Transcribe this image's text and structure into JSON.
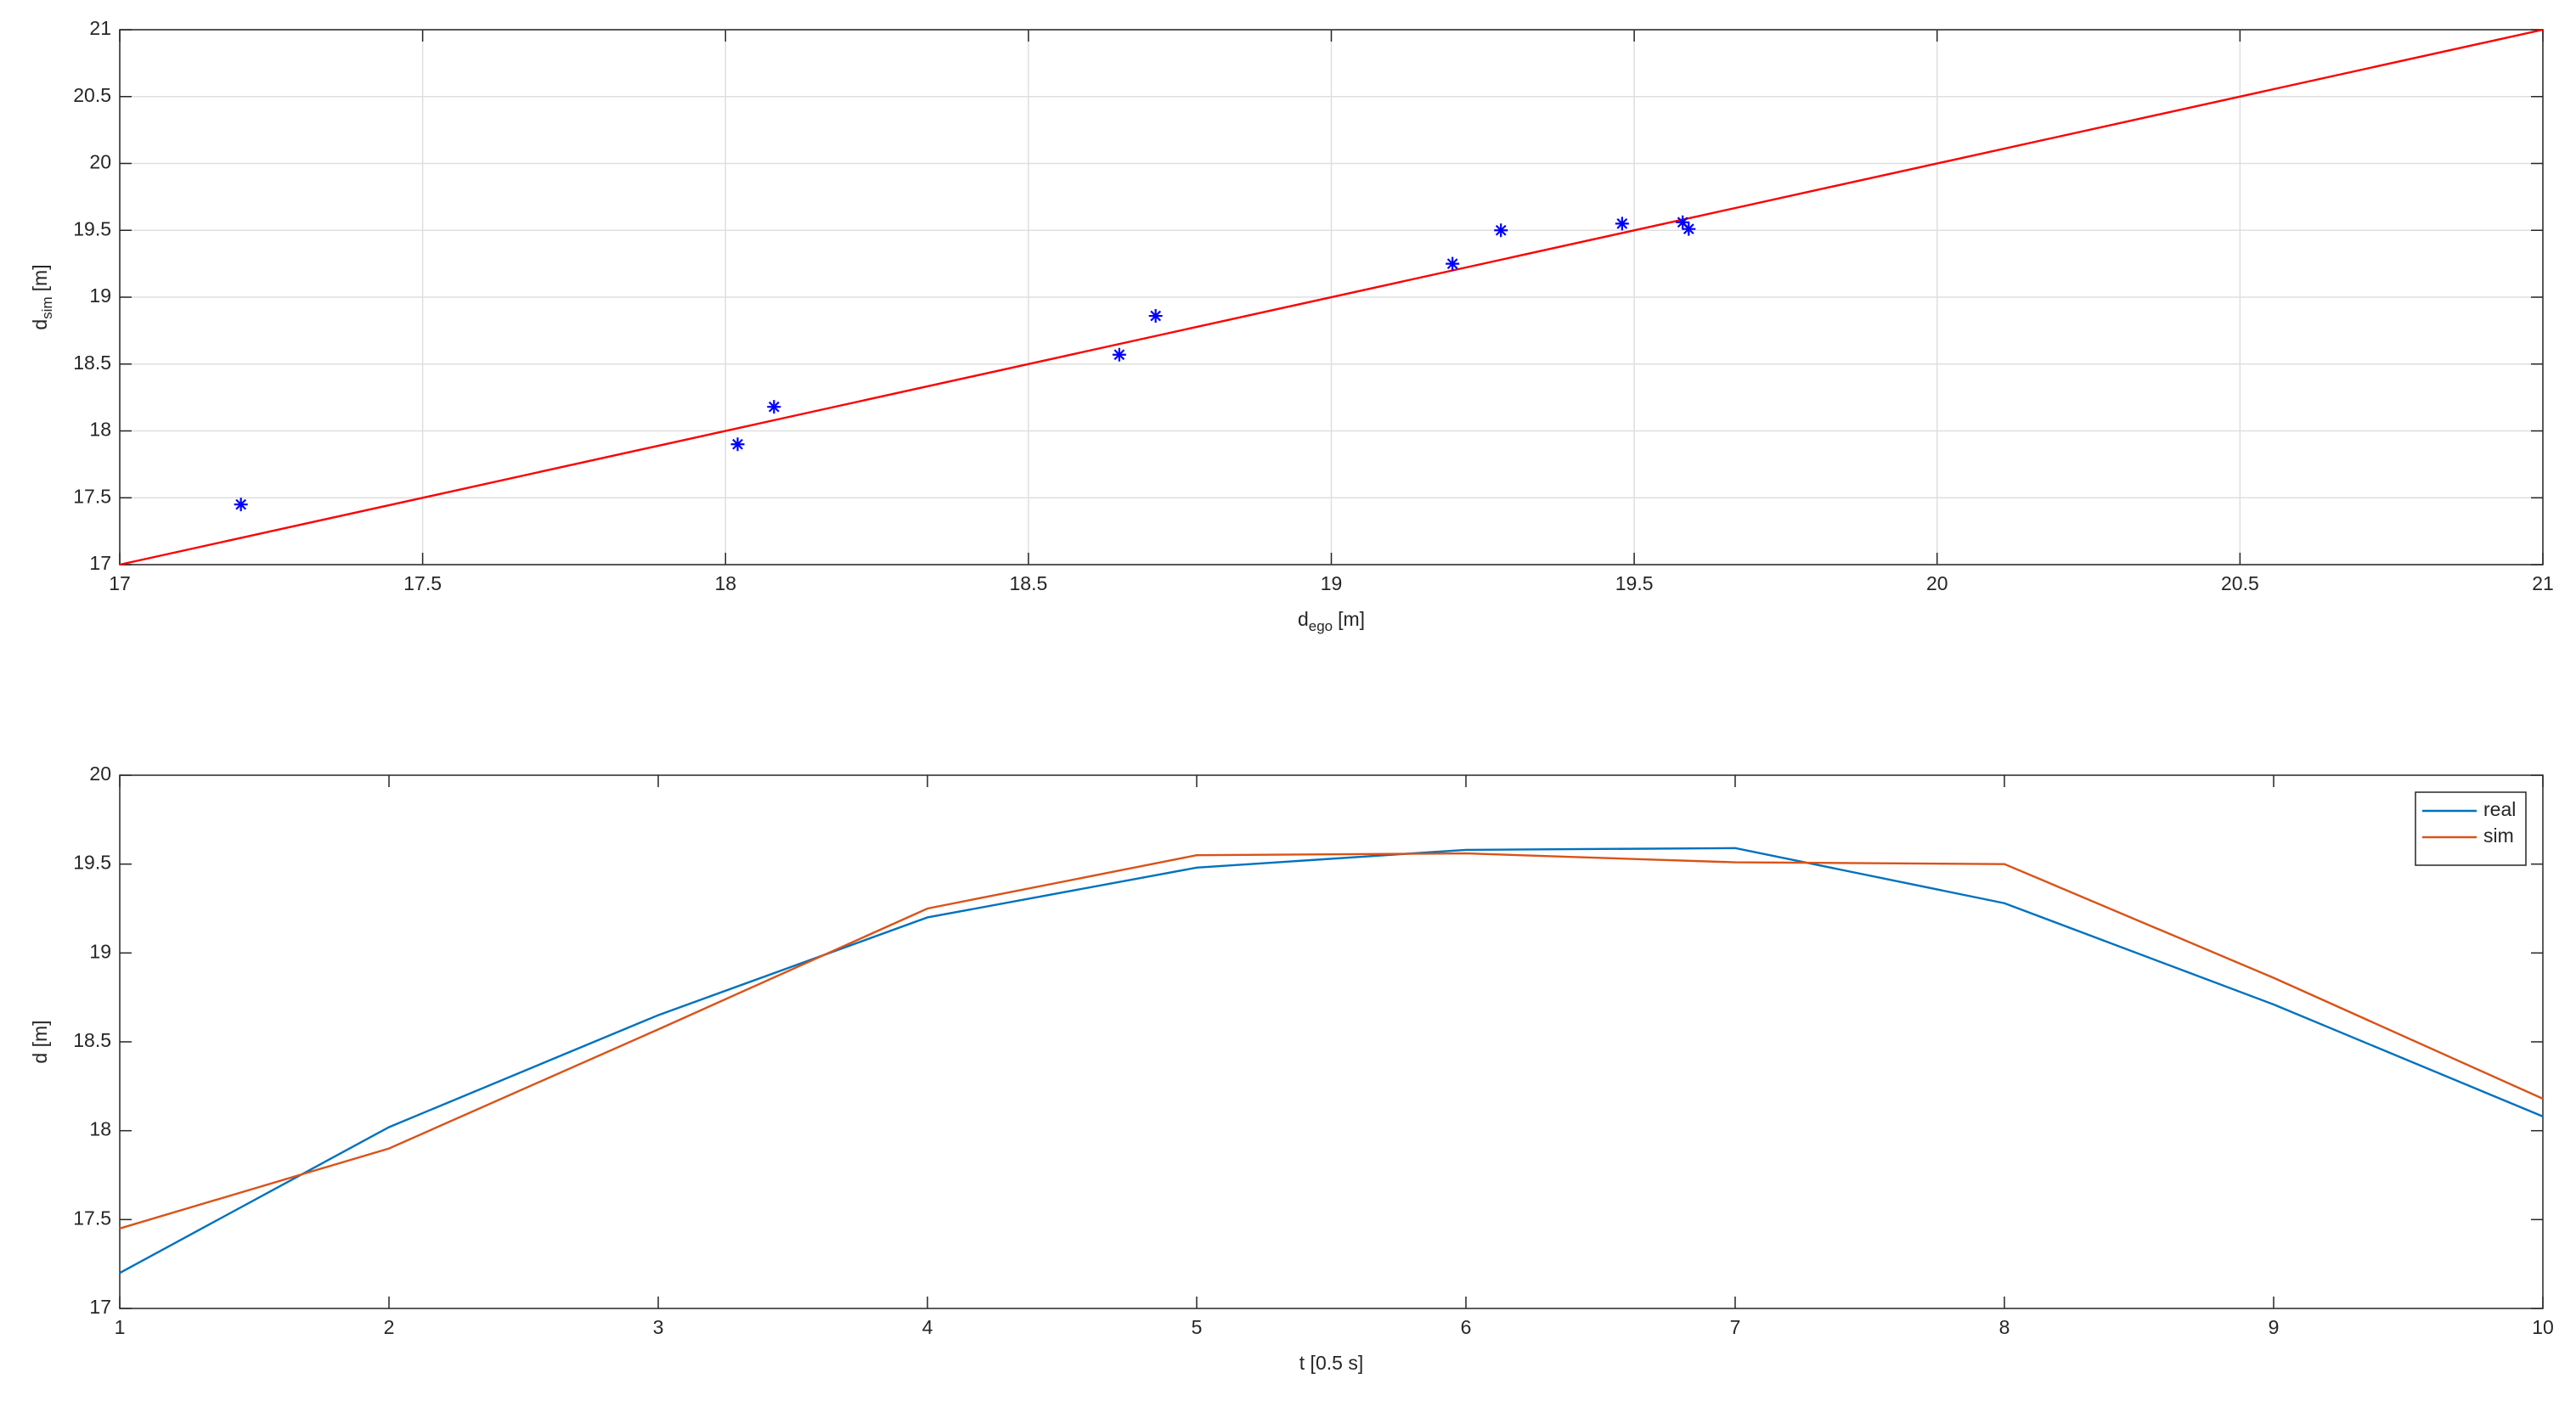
{
  "chart_data": [
    {
      "type": "scatter",
      "xlabel": {
        "text": "d",
        "sub": "ego",
        "unit": "[m]"
      },
      "ylabel": {
        "text": "d",
        "sub": "sim",
        "unit": "[m]"
      },
      "series": [
        {
          "x": [
            17.2,
            18.02,
            18.65,
            19.2,
            19.48,
            19.58,
            19.59,
            19.28,
            18.71,
            18.08
          ],
          "values": [
            17.45,
            17.9,
            18.57,
            19.25,
            19.55,
            19.56,
            19.51,
            19.5,
            18.86,
            18.18
          ],
          "color": "#0000ff",
          "marker": "*"
        }
      ],
      "reference_line": {
        "x": [
          17,
          21
        ],
        "values": [
          17,
          21
        ],
        "color": "#ff0000"
      },
      "xlim": [
        17,
        21
      ],
      "ylim": [
        17,
        21
      ],
      "xticks": [
        17,
        17.5,
        18,
        18.5,
        19,
        19.5,
        20,
        20.5,
        21
      ],
      "yticks": [
        17,
        17.5,
        18,
        18.5,
        19,
        19.5,
        20,
        20.5,
        21
      ],
      "grid": true
    },
    {
      "type": "line",
      "xlabel": {
        "text": "t [0.5 s]"
      },
      "ylabel": {
        "text": "d [m]"
      },
      "x": [
        1,
        2,
        3,
        4,
        5,
        6,
        7,
        8,
        9,
        10
      ],
      "series": [
        {
          "name": "real",
          "color": "#0072bd",
          "values": [
            17.2,
            18.02,
            18.65,
            19.2,
            19.48,
            19.58,
            19.59,
            19.28,
            18.71,
            18.08
          ]
        },
        {
          "name": "sim",
          "color": "#d95319",
          "values": [
            17.45,
            17.9,
            18.57,
            19.25,
            19.55,
            19.56,
            19.51,
            19.5,
            18.86,
            18.18
          ]
        }
      ],
      "xlim": [
        1,
        10
      ],
      "ylim": [
        17,
        20
      ],
      "xticks": [
        1,
        2,
        3,
        4,
        5,
        6,
        7,
        8,
        9,
        10
      ],
      "yticks": [
        17,
        17.5,
        18,
        18.5,
        19,
        19.5,
        20
      ],
      "grid": false,
      "legend": "upper-right"
    }
  ]
}
